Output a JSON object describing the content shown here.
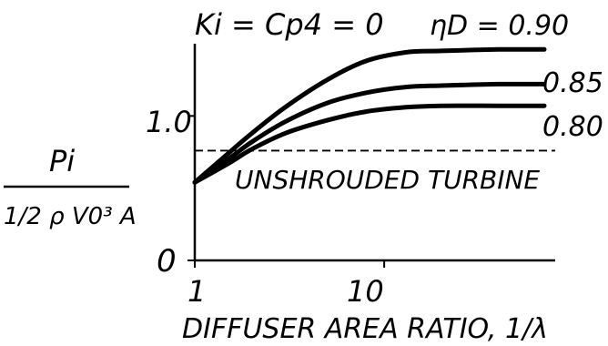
{
  "chart_data": {
    "type": "line",
    "x_scale": "log",
    "xlim": [
      1,
      70
    ],
    "ylim": [
      0,
      1.5
    ],
    "x_ticks": [
      {
        "value": 1,
        "label": "1"
      },
      {
        "value": 10,
        "label": "10"
      }
    ],
    "y_ticks": [
      {
        "value": 0,
        "label": "0"
      },
      {
        "value": 1.0,
        "label": "1.0"
      }
    ],
    "title": "Ki = Cp4 = 0",
    "xlabel": "DIFFUSER AREA RATIO, 1/λ",
    "ylabel": {
      "numerator": "Pi",
      "denominator": "1/2 ρ V0³ A"
    },
    "grid": false,
    "series_label_prefix": "ηD =",
    "series": [
      {
        "name": "0.90",
        "label": "ηD = 0.90",
        "x": [
          1,
          1.5,
          2,
          3,
          5,
          8,
          13,
          20,
          40,
          70
        ],
        "y": [
          0.54,
          0.74,
          0.88,
          1.06,
          1.25,
          1.38,
          1.44,
          1.45,
          1.46,
          1.46
        ]
      },
      {
        "name": "0.85",
        "label": "0.85",
        "x": [
          1,
          1.5,
          2,
          3,
          5,
          8,
          13,
          20,
          40,
          70
        ],
        "y": [
          0.54,
          0.7,
          0.82,
          0.96,
          1.09,
          1.16,
          1.2,
          1.21,
          1.22,
          1.22
        ]
      },
      {
        "name": "0.80",
        "label": "0.80",
        "x": [
          1,
          1.5,
          2,
          3,
          5,
          8,
          13,
          20,
          40,
          70
        ],
        "y": [
          0.54,
          0.67,
          0.77,
          0.88,
          0.97,
          1.03,
          1.06,
          1.07,
          1.07,
          1.07
        ]
      }
    ],
    "reference_line": {
      "label": "UNSHROUDED TURBINE",
      "y": 0.76,
      "style": "dashed"
    }
  }
}
